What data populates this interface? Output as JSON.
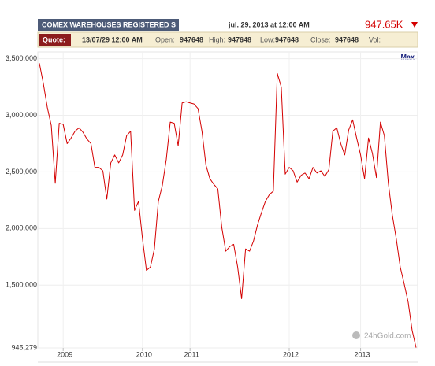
{
  "header": {
    "title": "COMEX WAREHOUSES REGISTERED S",
    "date": "jul. 29, 2013 at 12:00 AM",
    "price": "947.65K"
  },
  "quote": {
    "label": "Quote:",
    "datetime": "13/07/29 12:00 AM",
    "fields": [
      {
        "name": "Open:",
        "value": 947648
      },
      {
        "name": "High:",
        "value": 947648
      },
      {
        "name": "Low:",
        "value": 947648
      },
      {
        "name": "Close:",
        "value": 947648
      },
      {
        "name": "Vol:"
      }
    ]
  },
  "chart_data": {
    "type": "line",
    "range_button": "Max",
    "watermark": "24hGold.com",
    "color": "#d40000",
    "grid": true,
    "categories": [
      null,
      null,
      null,
      null,
      null,
      null,
      "2009",
      null,
      null,
      null,
      null,
      null,
      null,
      null,
      null,
      null,
      null,
      null,
      null,
      null,
      null,
      null,
      null,
      null,
      null,
      null,
      "2010",
      null,
      null,
      null,
      null,
      null,
      null,
      null,
      null,
      null,
      null,
      null,
      "2011",
      null,
      null,
      null,
      null,
      null,
      null,
      null,
      null,
      null,
      null,
      null,
      null,
      null,
      null,
      null,
      null,
      null,
      null,
      null,
      null,
      null,
      null,
      null,
      null,
      "2012",
      null,
      null,
      null,
      null,
      null,
      null,
      null,
      null,
      null,
      null,
      null,
      null,
      null,
      null,
      null,
      null,
      null,
      "2013",
      null,
      null,
      null,
      null,
      null,
      null,
      null,
      null,
      null,
      null,
      null,
      null,
      null,
      null
    ],
    "values": [
      3460000,
      3280000,
      3070000,
      2910000,
      2400000,
      2930000,
      2920000,
      2750000,
      2800000,
      2860000,
      2890000,
      2850000,
      2790000,
      2750000,
      2540000,
      2540000,
      2510000,
      2260000,
      2580000,
      2650000,
      2580000,
      2650000,
      2820000,
      2860000,
      2160000,
      2240000,
      1910000,
      1630000,
      1660000,
      1820000,
      2240000,
      2380000,
      2610000,
      2940000,
      2930000,
      2730000,
      3110000,
      3120000,
      3110000,
      3100000,
      3060000,
      2860000,
      2560000,
      2440000,
      2390000,
      2350000,
      2010000,
      1800000,
      1840000,
      1860000,
      1660000,
      1380000,
      1820000,
      1800000,
      1890000,
      2030000,
      2140000,
      2240000,
      2300000,
      2330000,
      3370000,
      3250000,
      2480000,
      2540000,
      2510000,
      2410000,
      2470000,
      2490000,
      2440000,
      2540000,
      2490000,
      2510000,
      2460000,
      2520000,
      2860000,
      2890000,
      2750000,
      2650000,
      2870000,
      2960000,
      2800000,
      2650000,
      2440000,
      2800000,
      2660000,
      2450000,
      2940000,
      2820000,
      2400000,
      2120000,
      1910000,
      1660000,
      1510000,
      1350000,
      1100000,
      947648
    ],
    "ylim": [
      945279,
      3560000
    ],
    "yticks": [
      {
        "value": 945279,
        "label": "945,279"
      },
      {
        "value": 1500000,
        "label": "1,500,000"
      },
      {
        "value": 2000000,
        "label": "2,000,000"
      },
      {
        "value": 2500000,
        "label": "2,500,000"
      },
      {
        "value": 3000000,
        "label": "3,000,000"
      },
      {
        "value": 3500000,
        "label": "3,500,000"
      }
    ]
  }
}
